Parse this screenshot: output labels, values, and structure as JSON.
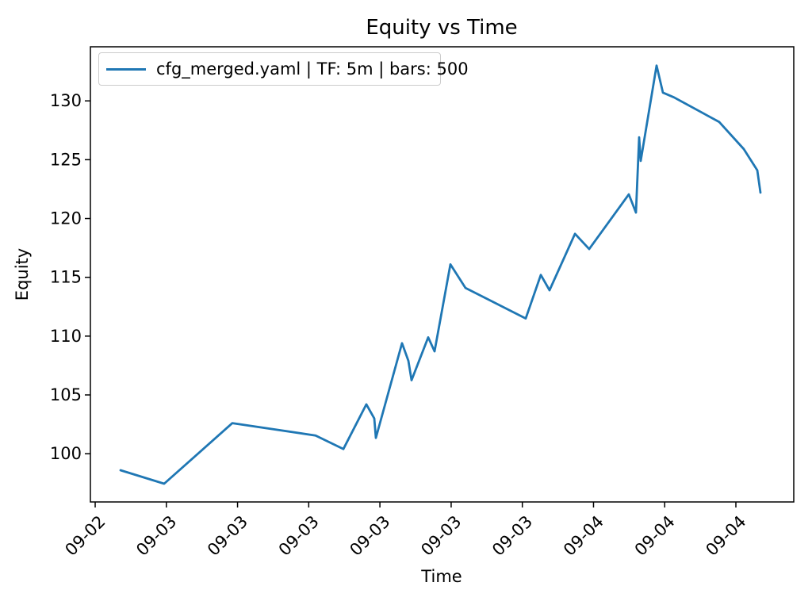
{
  "chart_data": {
    "type": "line",
    "title": "Equity vs Time",
    "xlabel": "Time",
    "ylabel": "Equity",
    "legend_position": "upper left",
    "grid": false,
    "line_color": "#1f77b4",
    "axis_color": "#000000",
    "ylim": [
      95.9,
      134.6
    ],
    "y_ticks": [
      100,
      105,
      110,
      115,
      120,
      125,
      130
    ],
    "x_ticks": [
      {
        "f": 0.0068,
        "label": "09-02"
      },
      {
        "f": 0.108,
        "label": "09-03"
      },
      {
        "f": 0.2092,
        "label": "09-03"
      },
      {
        "f": 0.3104,
        "label": "09-03"
      },
      {
        "f": 0.4116,
        "label": "09-03"
      },
      {
        "f": 0.5129,
        "label": "09-03"
      },
      {
        "f": 0.6141,
        "label": "09-03"
      },
      {
        "f": 0.7153,
        "label": "09-04"
      },
      {
        "f": 0.8165,
        "label": "09-04"
      },
      {
        "f": 0.9177,
        "label": "09-04"
      }
    ],
    "series": [
      {
        "name": "cfg_merged.yaml | TF: 5m | bars: 500",
        "points": [
          {
            "t": "09-02 21:26",
            "f": 0.0428,
            "v": 98.6
          },
          {
            "t": "09-02 23:53",
            "f": 0.1049,
            "v": 97.45
          },
          {
            "t": "09-03 03:43",
            "f": 0.2018,
            "v": 102.6
          },
          {
            "t": "09-03 08:23",
            "f": 0.3202,
            "v": 101.55
          },
          {
            "t": "09-03 09:57",
            "f": 0.3596,
            "v": 100.4
          },
          {
            "t": "09-03 11:14",
            "f": 0.3923,
            "v": 104.2
          },
          {
            "t": "09-03 11:41",
            "f": 0.4036,
            "v": 103.0
          },
          {
            "t": "09-03 11:46",
            "f": 0.4059,
            "v": 101.35
          },
          {
            "t": "09-03 13:14",
            "f": 0.4431,
            "v": 109.4
          },
          {
            "t": "09-03 13:36",
            "f": 0.4521,
            "v": 107.9
          },
          {
            "t": "09-03 13:47",
            "f": 0.4566,
            "v": 106.25
          },
          {
            "t": "09-03 14:43",
            "f": 0.4803,
            "v": 109.9
          },
          {
            "t": "09-03 15:04",
            "f": 0.4893,
            "v": 108.7
          },
          {
            "t": "09-03 15:58",
            "f": 0.5118,
            "v": 116.1
          },
          {
            "t": "09-03 16:48",
            "f": 0.5333,
            "v": 114.1
          },
          {
            "t": "09-03 20:12",
            "f": 0.6189,
            "v": 111.5
          },
          {
            "t": "09-03 21:02",
            "f": 0.6404,
            "v": 115.2
          },
          {
            "t": "09-03 21:32",
            "f": 0.6528,
            "v": 113.9
          },
          {
            "t": "09-03 22:57",
            "f": 0.6889,
            "v": 118.7
          },
          {
            "t": "09-03 23:45",
            "f": 0.7091,
            "v": 117.4
          },
          {
            "t": "09-04 01:59",
            "f": 0.7655,
            "v": 122.05
          },
          {
            "t": "09-04 02:23",
            "f": 0.7757,
            "v": 120.5
          },
          {
            "t": "09-04 02:34",
            "f": 0.7802,
            "v": 126.9
          },
          {
            "t": "09-04 02:39",
            "f": 0.7824,
            "v": 124.9
          },
          {
            "t": "09-04 03:32",
            "f": 0.805,
            "v": 133.0
          },
          {
            "t": "09-04 03:54",
            "f": 0.814,
            "v": 130.7
          },
          {
            "t": "09-04 04:31",
            "f": 0.8298,
            "v": 130.3
          },
          {
            "t": "09-04 07:04",
            "f": 0.8941,
            "v": 128.2
          },
          {
            "t": "09-04 08:26",
            "f": 0.929,
            "v": 125.9
          },
          {
            "t": "09-04 09:12",
            "f": 0.9481,
            "v": 124.1
          },
          {
            "t": "09-04 09:23",
            "f": 0.9527,
            "v": 122.2
          }
        ]
      }
    ]
  }
}
